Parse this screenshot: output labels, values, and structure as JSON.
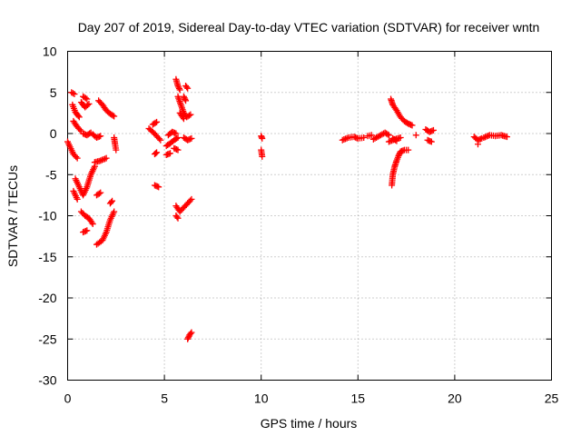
{
  "chart_data": {
    "type": "scatter",
    "title": "Day 207 of 2019, Sidereal Day-to-day VTEC variation (SDTVAR) for receiver wntn",
    "xlabel": "GPS time / hours",
    "ylabel": "SDTVAR / TECUs",
    "xlim": [
      0,
      25
    ],
    "ylim": [
      -30,
      10
    ],
    "xticks": [
      "0",
      "5",
      "10",
      "15",
      "20",
      "25"
    ],
    "yticks": [
      "10",
      "5",
      "0",
      "-5",
      "-10",
      "-15",
      "-20",
      "-25",
      "-30"
    ],
    "grid": true,
    "marker": "+",
    "color": "#ff0000",
    "series": [
      {
        "name": "wntn",
        "tracks": [
          [
            [
              0.0,
              -1.0
            ],
            [
              0.3,
              -2.5
            ],
            [
              0.5,
              -3.0
            ]
          ],
          [
            [
              0.2,
              5.0
            ],
            [
              0.35,
              4.8
            ]
          ],
          [
            [
              0.25,
              3.5
            ],
            [
              0.4,
              2.6
            ],
            [
              0.6,
              2.0
            ]
          ],
          [
            [
              0.3,
              1.5
            ],
            [
              0.5,
              0.8
            ],
            [
              0.7,
              0.3
            ]
          ],
          [
            [
              0.7,
              3.8
            ],
            [
              0.9,
              3.2
            ],
            [
              1.1,
              3.6
            ]
          ],
          [
            [
              0.8,
              4.5
            ],
            [
              1.0,
              4.2
            ]
          ],
          [
            [
              0.4,
              -5.5
            ],
            [
              0.6,
              -6.5
            ],
            [
              0.8,
              -7.5
            ],
            [
              1.0,
              -6.5
            ],
            [
              1.2,
              -5.0
            ],
            [
              1.4,
              -4.0
            ]
          ],
          [
            [
              0.3,
              -7.0
            ],
            [
              0.5,
              -8.0
            ]
          ],
          [
            [
              0.7,
              -9.5
            ],
            [
              0.9,
              -10.0
            ],
            [
              1.1,
              -10.3
            ],
            [
              1.3,
              -11.0
            ]
          ],
          [
            [
              0.8,
              -12.0
            ],
            [
              1.0,
              -11.8
            ]
          ],
          [
            [
              1.5,
              -13.5
            ],
            [
              1.8,
              -13.0
            ],
            [
              2.0,
              -12.0
            ],
            [
              2.2,
              -10.5
            ],
            [
              2.4,
              -9.5
            ]
          ],
          [
            [
              1.4,
              -3.5
            ],
            [
              1.7,
              -3.3
            ],
            [
              2.0,
              -3.0
            ]
          ],
          [
            [
              1.3,
              -0.1
            ],
            [
              1.5,
              -0.5
            ],
            [
              1.7,
              -0.3
            ]
          ],
          [
            [
              1.6,
              4.0
            ],
            [
              1.8,
              3.5
            ],
            [
              2.0,
              2.8
            ],
            [
              2.2,
              2.4
            ],
            [
              2.4,
              2.1
            ]
          ],
          [
            [
              0.8,
              0.0
            ],
            [
              1.0,
              -0.2
            ],
            [
              1.2,
              0.1
            ]
          ],
          [
            [
              2.4,
              -0.5
            ],
            [
              2.45,
              -1.3
            ],
            [
              2.5,
              -2.0
            ]
          ],
          [
            [
              2.2,
              -8.5
            ],
            [
              2.3,
              -8.2
            ]
          ],
          [
            [
              1.5,
              -7.5
            ],
            [
              1.7,
              -7.2
            ]
          ],
          [
            [
              4.2,
              0.6
            ],
            [
              4.4,
              0.2
            ],
            [
              4.6,
              -0.3
            ],
            [
              4.8,
              -0.8
            ]
          ],
          [
            [
              4.4,
              1.1
            ],
            [
              4.6,
              1.4
            ]
          ],
          [
            [
              4.5,
              -2.5
            ],
            [
              4.6,
              -2.3
            ]
          ],
          [
            [
              4.5,
              -6.3
            ],
            [
              4.7,
              -6.5
            ]
          ],
          [
            [
              5.1,
              -1.5
            ],
            [
              5.3,
              -1.2
            ],
            [
              5.5,
              -0.8
            ],
            [
              5.7,
              -0.5
            ]
          ],
          [
            [
              5.2,
              -0.2
            ],
            [
              5.4,
              0.2
            ],
            [
              5.6,
              0.0
            ]
          ],
          [
            [
              5.1,
              -2.6
            ],
            [
              5.3,
              -2.4
            ]
          ],
          [
            [
              5.5,
              -1.8
            ],
            [
              5.7,
              -2.0
            ]
          ],
          [
            [
              5.6,
              6.6
            ],
            [
              5.7,
              5.8
            ],
            [
              5.8,
              5.3
            ]
          ],
          [
            [
              5.7,
              4.5
            ],
            [
              5.85,
              3.5
            ],
            [
              6.0,
              2.5
            ],
            [
              6.15,
              2.0
            ],
            [
              6.35,
              2.3
            ]
          ],
          [
            [
              5.8,
              2.5
            ],
            [
              6.0,
              1.8
            ]
          ],
          [
            [
              6.1,
              5.8
            ],
            [
              6.2,
              5.5
            ]
          ],
          [
            [
              6.0,
              4.5
            ],
            [
              6.1,
              4.0
            ]
          ],
          [
            [
              6.0,
              -0.5
            ],
            [
              6.2,
              -0.8
            ],
            [
              6.4,
              -0.6
            ]
          ],
          [
            [
              5.6,
              -8.8
            ],
            [
              5.8,
              -9.5
            ],
            [
              6.0,
              -9.0
            ],
            [
              6.2,
              -8.5
            ],
            [
              6.4,
              -8.0
            ]
          ],
          [
            [
              5.6,
              -10.0
            ],
            [
              5.7,
              -10.3
            ]
          ],
          [
            [
              6.2,
              -25.0
            ],
            [
              6.3,
              -24.5
            ],
            [
              6.4,
              -24.2
            ]
          ],
          [
            [
              10.0,
              -0.3
            ],
            [
              10.05,
              -0.6
            ]
          ],
          [
            [
              10.0,
              -2.0
            ],
            [
              10.05,
              -2.8
            ]
          ],
          [
            [
              14.2,
              -0.8
            ],
            [
              14.5,
              -0.5
            ],
            [
              14.8,
              -0.4
            ],
            [
              15.0,
              -0.6
            ],
            [
              15.3,
              -0.5
            ]
          ],
          [
            [
              15.5,
              -0.3
            ],
            [
              15.7,
              -0.2
            ]
          ],
          [
            [
              15.8,
              -0.7
            ],
            [
              16.1,
              -0.3
            ],
            [
              16.4,
              0.1
            ],
            [
              16.6,
              -0.2
            ]
          ],
          [
            [
              16.6,
              -1.0
            ],
            [
              16.9,
              -0.7
            ],
            [
              17.2,
              -0.5
            ]
          ],
          [
            [
              16.8,
              -0.6
            ],
            [
              17.0,
              -0.9
            ]
          ],
          [
            [
              16.7,
              4.2
            ],
            [
              16.8,
              3.5
            ],
            [
              17.0,
              2.8
            ],
            [
              17.2,
              2.0
            ],
            [
              17.4,
              1.5
            ],
            [
              17.6,
              1.2
            ],
            [
              17.8,
              1.0
            ]
          ],
          [
            [
              16.75,
              -6.3
            ],
            [
              16.8,
              -5.0
            ],
            [
              16.9,
              -4.0
            ],
            [
              17.0,
              -3.3
            ],
            [
              17.1,
              -2.7
            ],
            [
              17.2,
              -2.2
            ],
            [
              17.4,
              -2.0
            ],
            [
              17.6,
              -2.0
            ]
          ],
          [
            [
              18.0,
              -0.2
            ]
          ],
          [
            [
              18.5,
              0.5
            ],
            [
              18.7,
              0.2
            ],
            [
              18.9,
              0.4
            ]
          ],
          [
            [
              18.6,
              -0.8
            ],
            [
              18.8,
              -1.0
            ]
          ],
          [
            [
              21.0,
              -0.4
            ],
            [
              21.2,
              -0.8
            ],
            [
              21.4,
              -0.6
            ]
          ],
          [
            [
              21.2,
              -1.3
            ]
          ],
          [
            [
              21.5,
              -0.5
            ],
            [
              21.8,
              -0.2
            ],
            [
              22.1,
              -0.3
            ],
            [
              22.4,
              -0.2
            ],
            [
              22.7,
              -0.4
            ]
          ]
        ]
      }
    ]
  }
}
